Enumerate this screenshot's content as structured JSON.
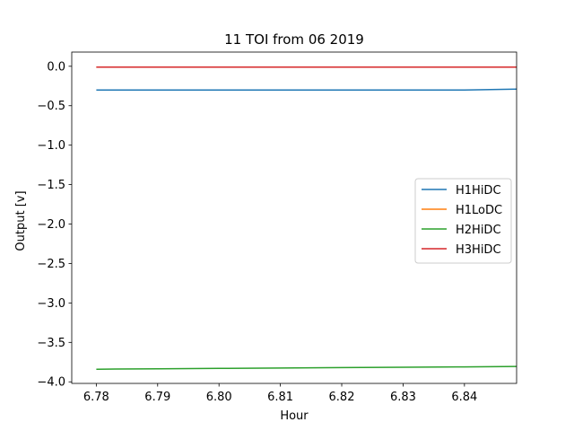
{
  "chart_data": {
    "type": "line",
    "title": "11 TOI from 06 2019",
    "xlabel": "Hour",
    "ylabel": "Output [v]",
    "xlim": [
      6.776,
      6.8485
    ],
    "ylim": [
      -4.02,
      0.18
    ],
    "xticks": [
      6.78,
      6.79,
      6.8,
      6.81,
      6.82,
      6.83,
      6.84
    ],
    "xtick_labels": [
      "6.78",
      "6.79",
      "6.80",
      "6.81",
      "6.82",
      "6.83",
      "6.84"
    ],
    "yticks": [
      0.0,
      -0.5,
      -1.0,
      -1.5,
      -2.0,
      -2.5,
      -3.0,
      -3.5,
      -4.0
    ],
    "ytick_labels": [
      "0.0",
      "−0.5",
      "−1.0",
      "−1.5",
      "−2.0",
      "−2.5",
      "−3.0",
      "−3.5",
      "−4.0"
    ],
    "grid": false,
    "legend_position": "center-right",
    "series": [
      {
        "name": "H1HiDC",
        "color": "#1f77b4",
        "x": [
          6.78,
          6.79,
          6.8,
          6.81,
          6.82,
          6.83,
          6.84,
          6.8485
        ],
        "y": [
          -0.3,
          -0.3,
          -0.3,
          -0.3,
          -0.3,
          -0.3,
          -0.3,
          -0.29
        ]
      },
      {
        "name": "H1LoDC",
        "color": "#ff7f0e",
        "x": [
          6.78,
          6.79,
          6.8,
          6.81,
          6.82,
          6.83,
          6.84,
          6.8485
        ],
        "y": [
          -0.01,
          -0.01,
          -0.01,
          -0.01,
          -0.01,
          -0.01,
          -0.01,
          -0.01
        ]
      },
      {
        "name": "H2HiDC",
        "color": "#2ca02c",
        "x": [
          6.78,
          6.79,
          6.8,
          6.81,
          6.82,
          6.83,
          6.84,
          6.8485
        ],
        "y": [
          -3.84,
          -3.835,
          -3.83,
          -3.825,
          -3.82,
          -3.815,
          -3.81,
          -3.805
        ]
      },
      {
        "name": "H3HiDC",
        "color": "#d62728",
        "x": [
          6.78,
          6.79,
          6.8,
          6.81,
          6.82,
          6.83,
          6.84,
          6.8485
        ],
        "y": [
          -0.01,
          -0.01,
          -0.01,
          -0.01,
          -0.01,
          -0.01,
          -0.01,
          -0.01
        ]
      }
    ]
  }
}
